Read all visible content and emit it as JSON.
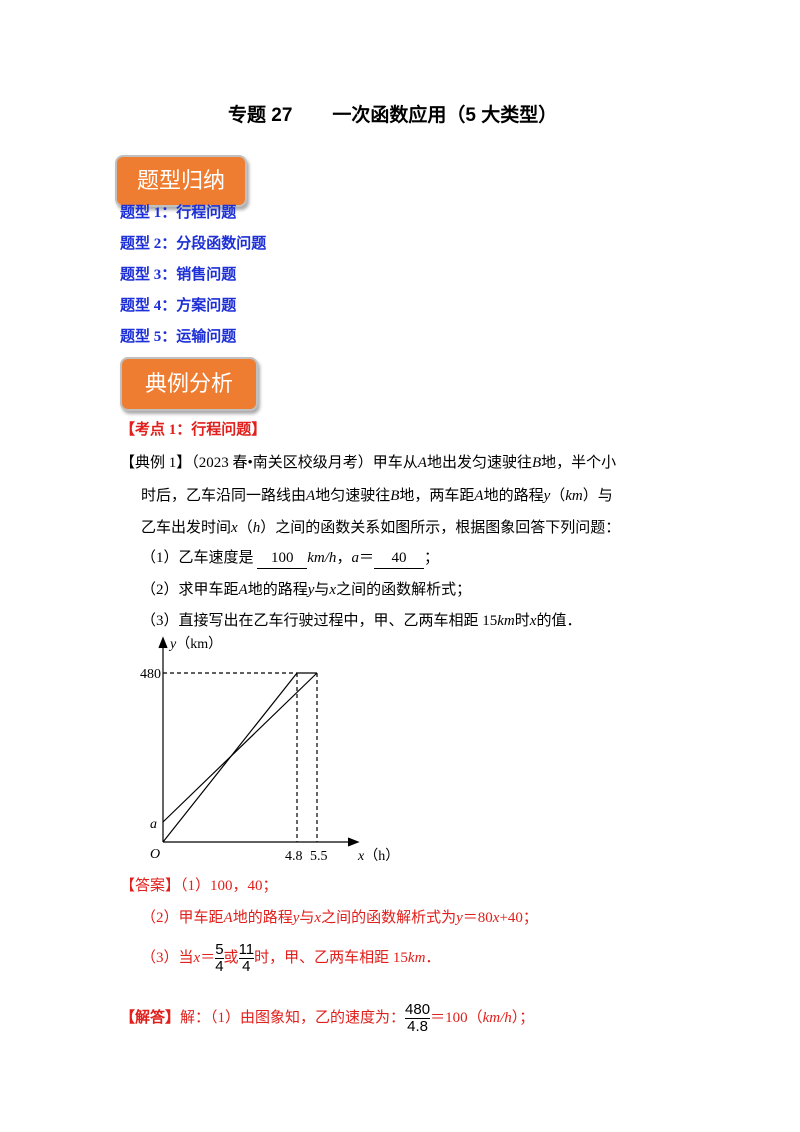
{
  "header": {
    "number": "专题 27",
    "title": "一次函数应用（5 大类型）"
  },
  "sections": [
    {
      "label": "题型归纳"
    },
    {
      "label": "典例分析"
    }
  ],
  "types": [
    "题型 1：行程问题",
    "题型 2：分段函数问题",
    "题型 3：销售问题",
    "题型 4：方案问题",
    "题型 5：运输问题"
  ],
  "topic": "【考点 1：行程问题】",
  "example": {
    "line1": [
      "【典例 1】（2023 春•南关区校级月考）甲车从",
      "A",
      "地出发匀速驶往",
      "B",
      "地，半个小"
    ],
    "line2": [
      "时后，乙车沿同一路线由",
      "A",
      "地匀速驶往",
      "B",
      "地，两车距",
      "A",
      "地的路程",
      "y",
      "（",
      "km",
      "）与"
    ],
    "line3": [
      "乙车出发时间",
      "x",
      "（",
      "h",
      "）之间的函数关系如图所示，根据图象回答下列问题："
    ],
    "q1": [
      "（1）乙车速度是",
      "100",
      "km/h",
      "，",
      "a",
      "＝",
      "40",
      "；"
    ],
    "q2": [
      "（2）求甲车距",
      "A",
      "地的路程",
      "y",
      "与",
      "x",
      "之间的函数解析式；"
    ],
    "q3": [
      "（3）直接写出在乙车行驶过程中，甲、乙两车相距 15",
      "km",
      "时",
      "x",
      "的值．"
    ]
  },
  "figure": {
    "y_label": "y",
    "y_unit": "（km）",
    "y_tick": "480",
    "a": "a",
    "origin": "O",
    "x_ticks": [
      "4.8",
      "5.5"
    ],
    "x_label": "x",
    "x_unit": "（h）"
  },
  "answer": {
    "tag": "【答案】",
    "line1": "（1）100，40；",
    "line2": [
      "（2）甲车距",
      "A",
      "地的路程",
      "y",
      "与",
      "x",
      "之间的函数解析式为",
      "y",
      "＝80",
      "x",
      "+40；"
    ],
    "line3": [
      "（3）当",
      "x",
      "＝",
      "5",
      "4",
      "或",
      "11",
      "4",
      "时，甲、乙两车相距 15",
      "km",
      "．"
    ]
  },
  "solution": {
    "tag": "【解答】",
    "parts": [
      "解：（1）由图象知，乙的速度为：",
      "480",
      "4.8",
      "＝100（",
      "km/h",
      "）；"
    ]
  }
}
